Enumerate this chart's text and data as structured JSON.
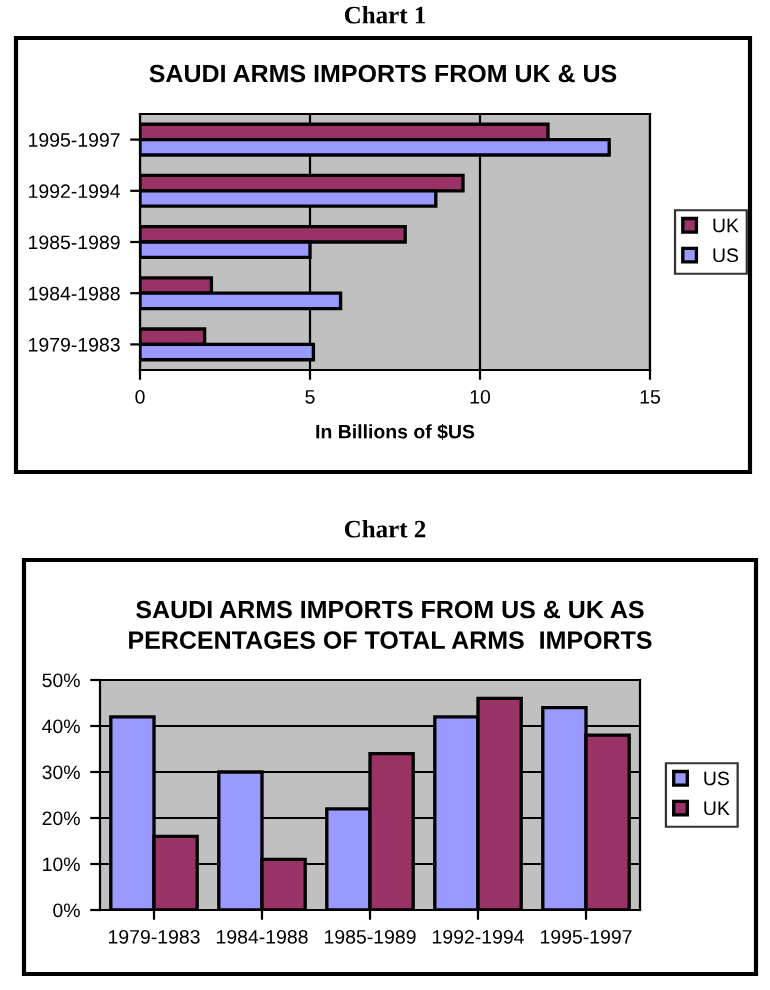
{
  "chart_data": [
    {
      "type": "bar",
      "orientation": "horizontal",
      "title": "SAUDI ARMS IMPORTS FROM UK & US",
      "xlabel": "In Billions of $US",
      "annotations": [
        "Chart 1"
      ],
      "categories": [
        "1995-1997",
        "1992-1994",
        "1985-1989",
        "1984-1988",
        "1979-1983"
      ],
      "series": [
        {
          "name": "UK",
          "color": "#993366",
          "values": [
            12.0,
            9.5,
            7.8,
            2.1,
            1.9
          ]
        },
        {
          "name": "US",
          "color": "#9999ff",
          "values": [
            13.8,
            8.7,
            5.0,
            5.9,
            5.1
          ]
        }
      ],
      "xlim": [
        0,
        15
      ],
      "xticks": [
        0,
        5,
        10,
        15
      ],
      "grid": "x",
      "legend": "right"
    },
    {
      "type": "bar",
      "title": "SAUDI ARMS IMPORTS FROM US & UK AS\nPERCENTAGES OF TOTAL ARMS  IMPORTS",
      "annotations": [
        "Chart 2"
      ],
      "categories": [
        "1979-1983",
        "1984-1988",
        "1985-1989",
        "1992-1994",
        "1995-1997"
      ],
      "series": [
        {
          "name": "US",
          "color": "#9999ff",
          "values": [
            42,
            30,
            22,
            42,
            44
          ]
        },
        {
          "name": "UK",
          "color": "#993366",
          "values": [
            16,
            11,
            34,
            46,
            38
          ]
        }
      ],
      "ylim": [
        0,
        50
      ],
      "yticks": [
        {
          "value": 0,
          "label": "0%"
        },
        {
          "value": 10,
          "label": "10%"
        },
        {
          "value": 20,
          "label": "20%"
        },
        {
          "value": 30,
          "label": "30%"
        },
        {
          "value": 40,
          "label": "40%"
        },
        {
          "value": 50,
          "label": "50%"
        }
      ],
      "grid": "y",
      "legend": "right"
    }
  ]
}
